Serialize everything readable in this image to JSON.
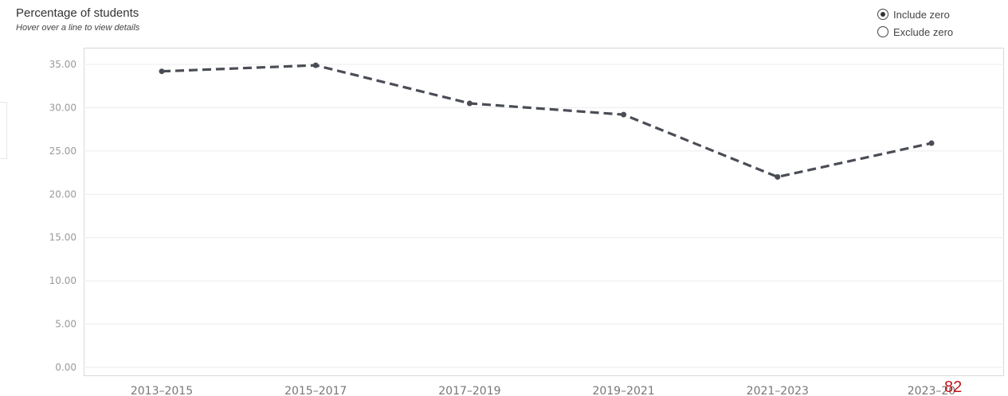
{
  "header": {
    "title": "Percentage of students",
    "subtitle": "Hover over a line to view details"
  },
  "zero_toggle": {
    "options": [
      {
        "label": "Include zero",
        "selected": true
      },
      {
        "label": "Exclude zero",
        "selected": false
      }
    ]
  },
  "corner_number": "82",
  "colors": {
    "line": "#4a4d55",
    "grid": "#ececec",
    "tick_label": "#9a9a9a"
  },
  "chart_data": {
    "type": "line",
    "title": "Percentage of students",
    "subtitle": "Hover over a line to view details",
    "categories": [
      "2013–2015",
      "2015–2017",
      "2017–2019",
      "2019–2021",
      "2021–2023",
      "2023–20"
    ],
    "series": [
      {
        "values": [
          34.2,
          34.9,
          30.5,
          29.2,
          22.0,
          25.9
        ],
        "line_style": "dashed",
        "markers": true
      }
    ],
    "y_ticks": [
      "35.00",
      "30.00",
      "25.00",
      "20.00",
      "15.00",
      "10.00",
      "5.00",
      "0.00"
    ],
    "ylim": [
      0,
      35
    ],
    "xlabel": "",
    "ylabel": "",
    "grid": true
  }
}
